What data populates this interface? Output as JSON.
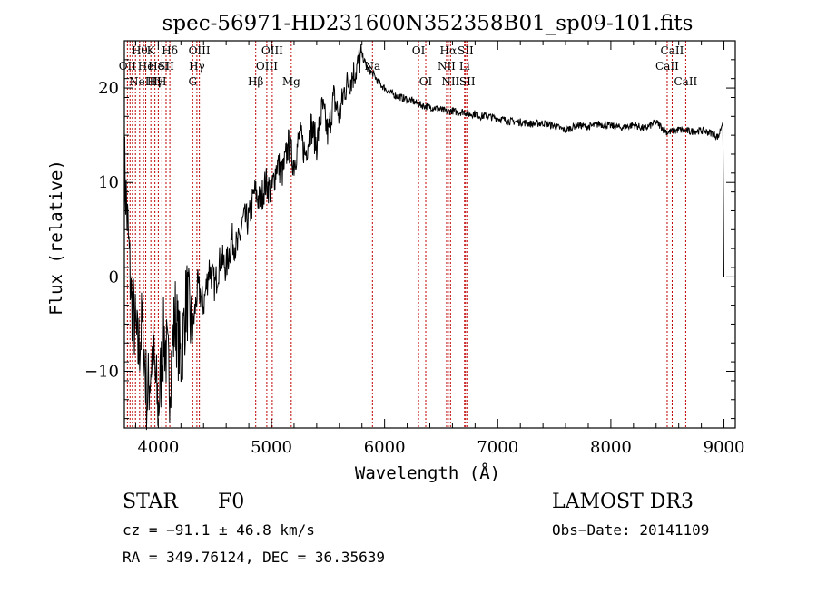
{
  "chart_data": {
    "type": "line",
    "title": "spec-56971-HD231600N352358B01_sp09-101.fits",
    "xlabel": "Wavelength (Å)",
    "ylabel": "Flux (relative)",
    "xlim": [
      3700,
      9100
    ],
    "ylim": [
      -16,
      25
    ],
    "xticks": [
      4000,
      5000,
      6000,
      7000,
      8000,
      9000
    ],
    "xtick_labels": [
      "4000",
      "5000",
      "6000",
      "7000",
      "8000",
      "9000"
    ],
    "yticks": [
      -10,
      0,
      10,
      20
    ],
    "ytick_labels": [
      "−10",
      "0",
      "10",
      "20"
    ],
    "series": [
      {
        "name": "flux",
        "x": [
          3700,
          3760,
          3820,
          3860,
          3900,
          3950,
          4000,
          4050,
          4100,
          4150,
          4200,
          4250,
          4300,
          4350,
          4400,
          4450,
          4500,
          4550,
          4600,
          4650,
          4700,
          4750,
          4800,
          4850,
          4900,
          4950,
          5000,
          5050,
          5100,
          5150,
          5200,
          5250,
          5300,
          5350,
          5400,
          5450,
          5500,
          5550,
          5600,
          5650,
          5700,
          5750,
          5800,
          5850,
          5900,
          5950,
          6000,
          6050,
          6100,
          6150,
          6200,
          6250,
          6300,
          6350,
          6400,
          6450,
          6500,
          6550,
          6600,
          6650,
          6700,
          6750,
          6800,
          6850,
          6900,
          6950,
          7000,
          7100,
          7200,
          7300,
          7400,
          7500,
          7600,
          7700,
          7800,
          7900,
          8000,
          8100,
          8200,
          8300,
          8400,
          8500,
          8600,
          8700,
          8800,
          8900,
          8950,
          8990,
          9000
        ],
        "y": [
          12,
          -2,
          -8,
          -5,
          -13,
          -8,
          -14,
          -6,
          -11,
          -4,
          -9,
          -2,
          -6,
          -1,
          -3,
          1,
          -1,
          2,
          1,
          4,
          3,
          6,
          6,
          9,
          8,
          10,
          9,
          12,
          11,
          14,
          12,
          15,
          13,
          16,
          14,
          18,
          15,
          19,
          17,
          20,
          21,
          22,
          23.5,
          22,
          21.5,
          20.5,
          20,
          19.5,
          19.2,
          19,
          18.8,
          18.6,
          18.3,
          18.1,
          18,
          17.9,
          17.7,
          17.5,
          17.6,
          17.4,
          17.5,
          17.2,
          17.3,
          17.0,
          17.1,
          16.9,
          16.8,
          16.5,
          16.4,
          16.2,
          16.3,
          16.0,
          15.5,
          16.1,
          15.9,
          16.2,
          16.0,
          15.8,
          16.1,
          15.7,
          16.4,
          15.3,
          15.6,
          15.4,
          15.5,
          15.2,
          14.8,
          16.5,
          0
        ]
      }
    ],
    "line_markers": [
      {
        "x": 3727,
        "label": "OII",
        "row": 1
      },
      {
        "x": 3750,
        "label": "",
        "row": 0
      },
      {
        "x": 3771,
        "label": "",
        "row": 0
      },
      {
        "x": 3798,
        "label": "",
        "row": 0
      },
      {
        "x": 3835,
        "label": "Hθ",
        "row": 0
      },
      {
        "x": 3869,
        "label": "NeIII",
        "row": 2
      },
      {
        "x": 3889,
        "label": "He",
        "row": 1
      },
      {
        "x": 3934,
        "label": "K",
        "row": 0
      },
      {
        "x": 3970,
        "label": "Hγ",
        "row": 2
      },
      {
        "x": 4000,
        "label": "HeI",
        "row": 1
      },
      {
        "x": 4032,
        "label": "H",
        "row": 2
      },
      {
        "x": 4069,
        "label": "SII",
        "row": 1
      },
      {
        "x": 4102,
        "label": "Hδ",
        "row": 0
      },
      {
        "x": 4304,
        "label": "G",
        "row": 2
      },
      {
        "x": 4341,
        "label": "Hγ",
        "row": 1
      },
      {
        "x": 4363,
        "label": "OIII",
        "row": 0
      },
      {
        "x": 4861,
        "label": "Hβ",
        "row": 2
      },
      {
        "x": 4959,
        "label": "OIII",
        "row": 1
      },
      {
        "x": 5007,
        "label": "OIII",
        "row": 0
      },
      {
        "x": 5175,
        "label": "Mg",
        "row": 2
      },
      {
        "x": 5893,
        "label": "Na",
        "row": 1
      },
      {
        "x": 6300,
        "label": "OI",
        "row": 0
      },
      {
        "x": 6364,
        "label": "OI",
        "row": 2
      },
      {
        "x": 6548,
        "label": "NII",
        "row": 1
      },
      {
        "x": 6563,
        "label": "Hα",
        "row": 0
      },
      {
        "x": 6583,
        "label": "NII",
        "row": 2
      },
      {
        "x": 6707,
        "label": "Li",
        "row": 1
      },
      {
        "x": 6716,
        "label": "SII",
        "row": 0
      },
      {
        "x": 6731,
        "label": "SII",
        "row": 2
      },
      {
        "x": 8498,
        "label": "CaII",
        "row": 1
      },
      {
        "x": 8542,
        "label": "CaII",
        "row": 0
      },
      {
        "x": 8662,
        "label": "CaII",
        "row": 2
      }
    ]
  },
  "info": {
    "class_label": "STAR",
    "subclass_label": "F0",
    "survey": "LAMOST DR3",
    "redshift": "cz = −91.1 ± 46.8 km/s",
    "obs_date": "Obs−Date: 20141109",
    "coords": "RA = 349.76124, DEC =  36.35639"
  }
}
